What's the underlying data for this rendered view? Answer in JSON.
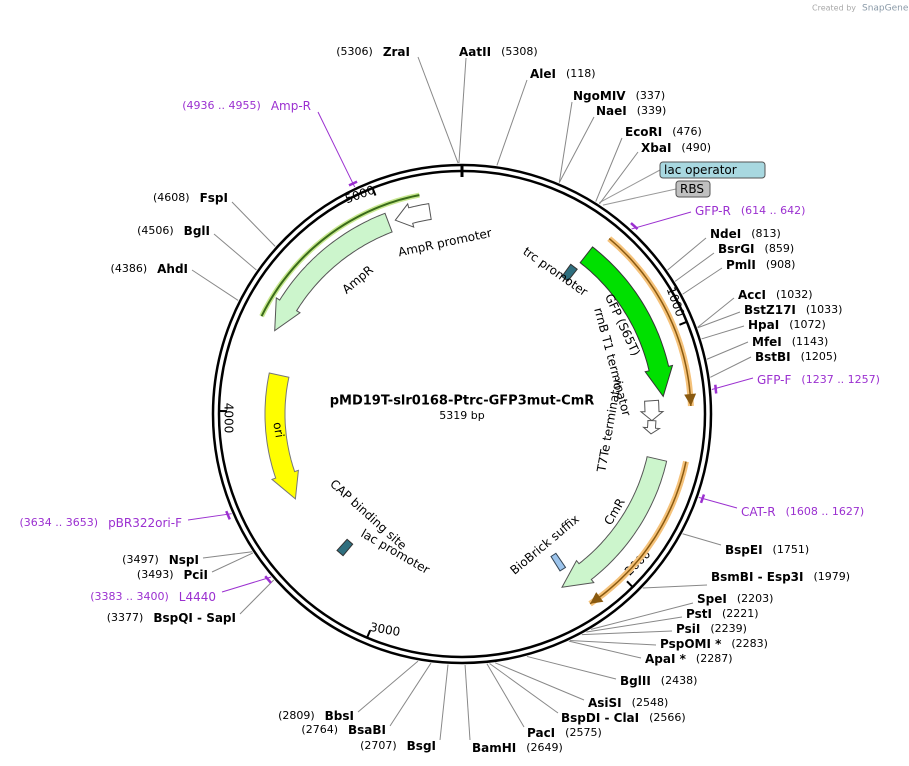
{
  "header": {
    "created_by": "Created by",
    "brand": "SnapGene"
  },
  "map": {
    "title": "pMD19T-slr0168-Ptrc-GFP3mut-CmR",
    "length": "5319 bp",
    "ticks": [
      "1000",
      "2000",
      "3000",
      "4000",
      "5000"
    ]
  },
  "sites": [
    {
      "name": "ZraI",
      "position": "(5306)"
    },
    {
      "name": "AatII",
      "position": "(5308)"
    },
    {
      "name": "AleI",
      "position": "(118)"
    },
    {
      "name": "NgoMIV",
      "position": "(337)"
    },
    {
      "name": "NaeI",
      "position": "(339)"
    },
    {
      "name": "EcoRI",
      "position": "(476)"
    },
    {
      "name": "XbaI",
      "position": "(490)"
    },
    {
      "name": "NdeI",
      "position": "(813)"
    },
    {
      "name": "BsrGI",
      "position": "(859)"
    },
    {
      "name": "PmlI",
      "position": "(908)"
    },
    {
      "name": "AccI",
      "position": "(1032)"
    },
    {
      "name": "BstZ17I",
      "position": "(1033)"
    },
    {
      "name": "HpaI",
      "position": "(1072)"
    },
    {
      "name": "MfeI",
      "position": "(1143)"
    },
    {
      "name": "BstBI",
      "position": "(1205)"
    },
    {
      "name": "BspEI",
      "position": "(1751)"
    },
    {
      "name": "BsmBI - Esp3I",
      "position": "(1979)"
    },
    {
      "name": "SpeI",
      "position": "(2203)"
    },
    {
      "name": "PstI",
      "position": "(2221)"
    },
    {
      "name": "PsiI",
      "position": "(2239)"
    },
    {
      "name": "PspOMI *",
      "position": "(2283)"
    },
    {
      "name": "ApaI *",
      "position": "(2287)"
    },
    {
      "name": "BglII",
      "position": "(2438)"
    },
    {
      "name": "AsiSI",
      "position": "(2548)"
    },
    {
      "name": "BspDI - ClaI",
      "position": "(2566)"
    },
    {
      "name": "PacI",
      "position": "(2575)"
    },
    {
      "name": "BamHI",
      "position": "(2649)"
    },
    {
      "name": "BsgI",
      "position": "(2707)"
    },
    {
      "name": "BsaBI",
      "position": "(2764)"
    },
    {
      "name": "BbsI",
      "position": "(2809)"
    },
    {
      "name": "BspQI - SapI",
      "position": "(3377)"
    },
    {
      "name": "PciI",
      "position": "(3493)"
    },
    {
      "name": "NspI",
      "position": "(3497)"
    },
    {
      "name": "AhdI",
      "position": "(4386)"
    },
    {
      "name": "BglI",
      "position": "(4506)"
    },
    {
      "name": "FspI",
      "position": "(4608)"
    }
  ],
  "primers": [
    {
      "name": "GFP-R",
      "range": "(614 .. 642)"
    },
    {
      "name": "GFP-F",
      "range": "(1237 .. 1257)"
    },
    {
      "name": "CAT-R",
      "range": "(1608 .. 1627)"
    },
    {
      "name": "L4440",
      "range": "(3383 .. 3400)"
    },
    {
      "name": "pBR322ori-F",
      "range": "(3634 .. 3653)"
    },
    {
      "name": "Amp-R",
      "range": "(4936 .. 4955)"
    }
  ],
  "boxes": [
    "lac operator",
    "RBS"
  ],
  "features": [
    "AmpR promoter",
    "AmpR",
    "ori",
    "CAP binding site",
    "lac promoter",
    "trc promoter",
    "GFP (S65T)",
    "rrnB T1 terminator",
    "T7Te terminator",
    "CmR",
    "BioBrick suffix"
  ]
}
